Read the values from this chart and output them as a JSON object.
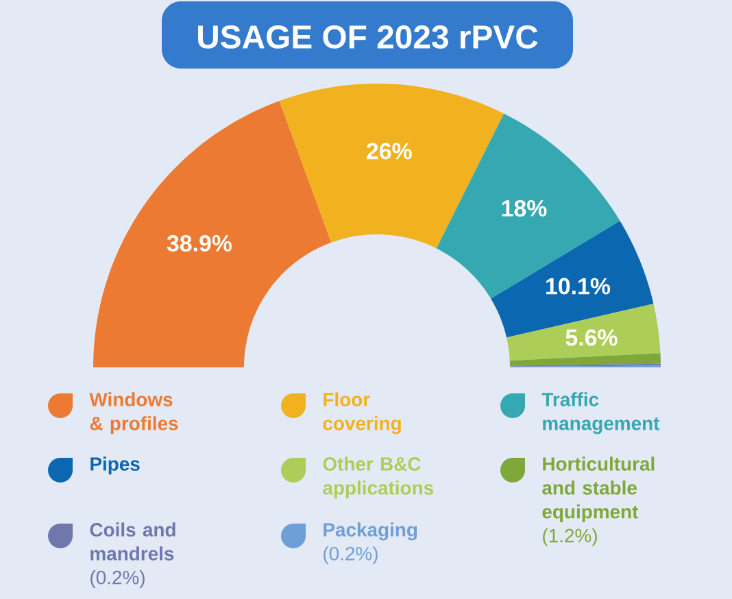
{
  "chart_data": {
    "type": "donut",
    "title": "USAGE OF 2023 rPVC",
    "categories": [
      "Windows & profiles",
      "Floor covering",
      "Traffic management",
      "Pipes",
      "Other B&C applications",
      "Horticultural and stable equipment",
      "Coils and mandrels",
      "Packaging"
    ],
    "values": [
      38.9,
      26,
      18,
      10.1,
      5.6,
      1.2,
      0.2,
      0.2
    ],
    "colors": [
      "#ec7a32",
      "#f2b11e",
      "#35a8b2",
      "#0b67b0",
      "#acce58",
      "#7fa83a",
      "#6f78ad",
      "#6f9fd7"
    ],
    "value_labels": [
      "38.9%",
      "26%",
      "18%",
      "10.1%",
      "5.6%",
      "(1.2%)",
      "(0.2%)",
      "(0.2%)"
    ],
    "data_labels": true,
    "legend": "bottom"
  }
}
